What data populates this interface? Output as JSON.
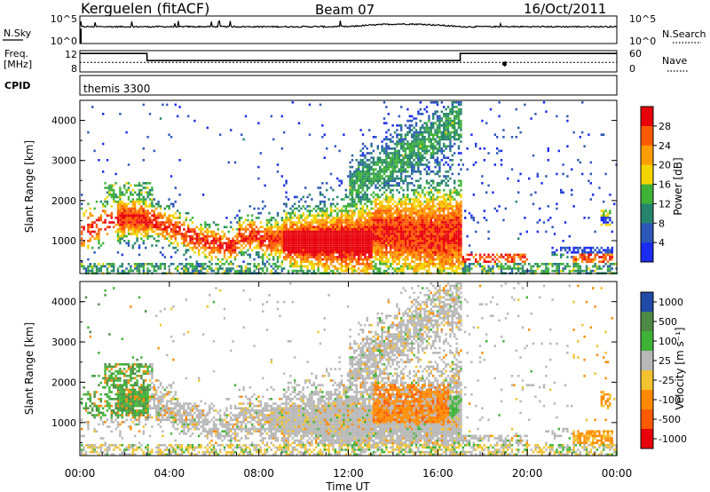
{
  "header": {
    "station": "Kerguelen (fitACF)",
    "beam": "Beam 07",
    "date": "16/Oct/2011"
  },
  "nsky_panel": {
    "label": "N.Sky",
    "right_label": "N.Search",
    "left_ticks": [
      "10^5",
      "10^0"
    ],
    "right_ticks": [
      "10^5",
      "10^0"
    ]
  },
  "freq_panel": {
    "label_line1": "Freq.",
    "label_line2": "[MHz]",
    "left_ticks": [
      "12",
      "8"
    ],
    "right_ticks": [
      "60",
      "0"
    ],
    "right_label": "Nave",
    "freq_steps": [
      {
        "t_start": 0.0,
        "t_end": 3.0,
        "freq": 11.9
      },
      {
        "t_start": 3.0,
        "t_end": 17.0,
        "freq": 10.4
      },
      {
        "t_start": 17.0,
        "t_end": 24.0,
        "freq": 11.9
      }
    ],
    "nave_level": 27
  },
  "cpid_panel": {
    "label": "CPID",
    "program": "themis 3300"
  },
  "chart_data": [
    {
      "type": "heatmap",
      "title": "",
      "xlabel": "",
      "ylabel": "Slant Range [km]",
      "colorbar_label": "Power [dB]",
      "colorbar_ticks": [
        "28",
        "24",
        "20",
        "16",
        "12",
        "8",
        "4"
      ],
      "colorbar_colors": [
        "#e8000b",
        "#ff5a00",
        "#ff9d00",
        "#f3d400",
        "#3fb238",
        "#27856e",
        "#2c58b8",
        "#1b2cf0"
      ],
      "yticks": [
        "4000",
        "3000",
        "2000",
        "1000"
      ],
      "ylim": [
        180,
        4500
      ],
      "xlim": [
        0,
        24
      ]
    },
    {
      "type": "heatmap",
      "title": "",
      "xlabel": "Time UT",
      "ylabel": "Slant Range [km]",
      "colorbar_label": "Velocity  [m s⁻¹]",
      "colorbar_ticks": [
        "1000",
        "500",
        "100",
        "25",
        "-25",
        "-100",
        "-500",
        "-1000"
      ],
      "colorbar_colors": [
        "#1f4aa8",
        "#4d8a45",
        "#3fb238",
        "#b7b7b7",
        "#f2c230",
        "#ff8a00",
        "#ff5a00",
        "#e8000b"
      ],
      "yticks": [
        "4000",
        "3000",
        "2000",
        "1000"
      ],
      "xticks": [
        "00:00",
        "04:00",
        "08:00",
        "12:00",
        "16:00",
        "20:00",
        "00:00"
      ],
      "ylim": [
        180,
        4500
      ],
      "xlim": [
        0,
        24
      ]
    }
  ]
}
